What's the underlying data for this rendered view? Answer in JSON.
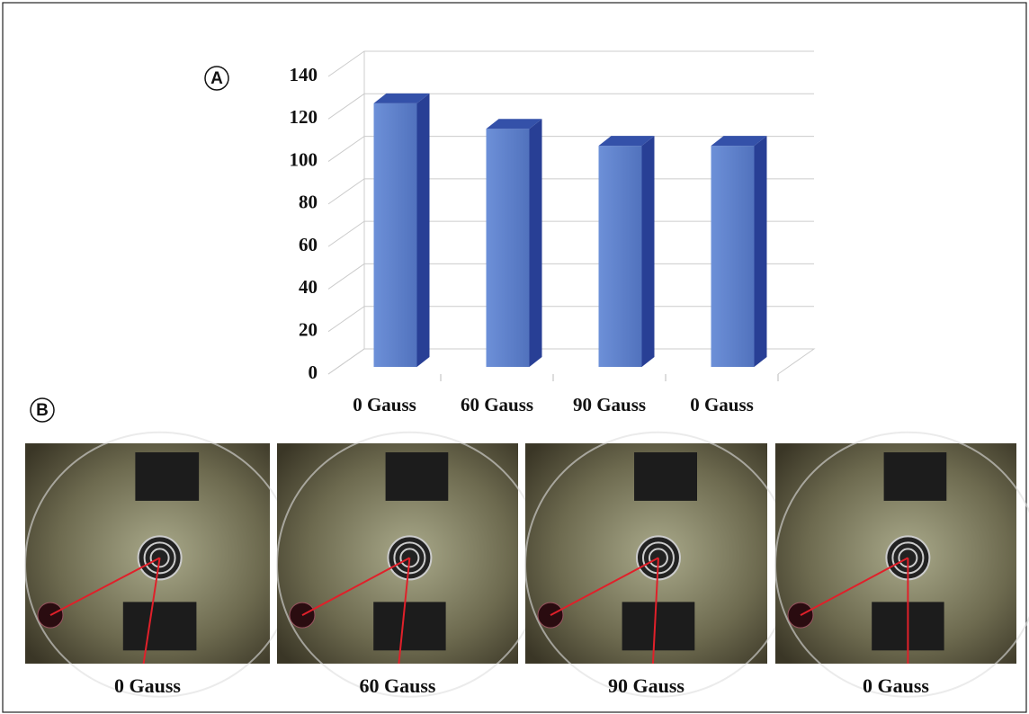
{
  "panel_labels": [
    "A",
    "B"
  ],
  "chart_data": {
    "type": "bar3d",
    "categories": [
      "0 Gauss",
      "60 Gauss",
      "90 Gauss",
      "0 Gauss"
    ],
    "values": [
      124,
      112,
      104,
      104
    ],
    "color": "#5b7fcb",
    "ylim": [
      0,
      140
    ],
    "yticks": [
      0,
      20,
      40,
      60,
      80,
      100,
      120,
      140
    ],
    "grid": true
  },
  "photos": [
    {
      "caption": "0 Gauss"
    },
    {
      "caption": "60 Gauss"
    },
    {
      "caption": "90 Gauss"
    },
    {
      "caption": "0 Gauss"
    }
  ]
}
